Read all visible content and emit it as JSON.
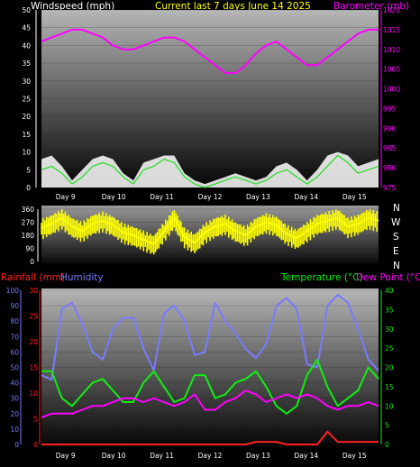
{
  "header": {
    "left_label": "Windspeed (mph)",
    "center_label": "Current last 7 days June 14 2025",
    "right_label": "Barometer (mb)"
  },
  "colors": {
    "wind": "#ffffff",
    "gust_fill": "#ffffff",
    "barometer": "#ff00ff",
    "direction": "#ffff00",
    "rainfall": "#ff2020",
    "humidity": "#7a7aff",
    "temperature": "#11ee11",
    "dewpoint": "#ff00ff",
    "header_center": "#ffff00",
    "header_left": "#ffffff",
    "header_right": "#ff00ff"
  },
  "panel3_labels": {
    "rainfall": "Rainfall (mm)",
    "humidity": "Humidity",
    "temperature": "Temperature (°C)",
    "dewpoint": "Dew Point (°C)"
  },
  "compass": [
    "N",
    "W",
    "S",
    "E",
    "N"
  ],
  "chart_data": [
    {
      "type": "line",
      "title": "Current last 7 days June 14 2025",
      "xlabel": "",
      "x_tick_labels": [
        "Day 9",
        "Day 10",
        "Day 11",
        "Day 12",
        "Day 13",
        "Day 14",
        "Day 15"
      ],
      "y_left": {
        "label": "Windspeed (mph)",
        "range": [
          0,
          50
        ],
        "ticks": [
          0,
          5,
          10,
          15,
          20,
          25,
          30,
          35,
          40,
          45,
          50
        ]
      },
      "y_right": {
        "label": "Barometer (mb)",
        "range": [
          975,
          1020
        ],
        "ticks": [
          975,
          980,
          985,
          990,
          995,
          1000,
          1005,
          1010,
          1015,
          1020
        ]
      },
      "series": [
        {
          "name": "Barometer (mb)",
          "axis": "right",
          "values": [
            1012,
            1013,
            1014,
            1015,
            1015,
            1014,
            1013,
            1011,
            1010,
            1010,
            1011,
            1012,
            1013,
            1013,
            1012,
            1010,
            1008,
            1006,
            1004,
            1004,
            1006,
            1009,
            1011,
            1012,
            1010,
            1008,
            1006,
            1006,
            1008,
            1010,
            1012,
            1014,
            1015,
            1015
          ]
        },
        {
          "name": "Windspeed (mph)",
          "axis": "left",
          "values": [
            5,
            6,
            4,
            1,
            3,
            6,
            7,
            6,
            3,
            1,
            5,
            6,
            8,
            7,
            3,
            1,
            0,
            1,
            2,
            3,
            2,
            1,
            2,
            4,
            5,
            3,
            1,
            3,
            6,
            9,
            7,
            4,
            5,
            6
          ]
        },
        {
          "name": "Gust (mph)",
          "axis": "left",
          "values": [
            8,
            9,
            6,
            2,
            5,
            8,
            9,
            8,
            4,
            2,
            7,
            8,
            9,
            9,
            4,
            2,
            1,
            2,
            3,
            4,
            3,
            2,
            3,
            6,
            7,
            5,
            2,
            5,
            9,
            10,
            9,
            6,
            7,
            8
          ]
        }
      ]
    },
    {
      "type": "scatter",
      "title": "",
      "y_range": [
        0,
        360
      ],
      "y_ticks": [
        0,
        90,
        180,
        270,
        360
      ],
      "series": [
        {
          "name": "Wind direction",
          "values": [
            230,
            260,
            300,
            240,
            210,
            260,
            280,
            250,
            200,
            180,
            150,
            120,
            210,
            300,
            170,
            130,
            200,
            240,
            260,
            210,
            180,
            240,
            270,
            250,
            190,
            160,
            210,
            260,
            280,
            300,
            240,
            260,
            300,
            280
          ]
        }
      ]
    },
    {
      "type": "line",
      "title": "",
      "x_tick_labels": [
        "Day 9",
        "Day 10",
        "Day 11",
        "Day 12",
        "Day 13",
        "Day 14",
        "Day 15"
      ],
      "y_left_outer": {
        "label": "Humidity",
        "range": [
          0,
          100
        ],
        "ticks": [
          0,
          10,
          20,
          30,
          40,
          50,
          60,
          70,
          80,
          90,
          100
        ]
      },
      "y_left_inner": {
        "label": "Rainfall (mm)",
        "range": [
          0,
          30
        ],
        "ticks": [
          0,
          5,
          10,
          15,
          20,
          25,
          30
        ]
      },
      "y_right": {
        "label": "Temperature (°C)",
        "range": [
          0,
          40
        ],
        "ticks": [
          0,
          5,
          10,
          15,
          20,
          25,
          30,
          35,
          40
        ]
      },
      "series": [
        {
          "name": "Humidity",
          "axis": "left_outer",
          "values": [
            45,
            42,
            88,
            92,
            78,
            60,
            55,
            75,
            82,
            82,
            62,
            48,
            85,
            90,
            80,
            58,
            60,
            92,
            80,
            72,
            62,
            56,
            65,
            90,
            95,
            88,
            52,
            50,
            90,
            97,
            92,
            75,
            55,
            48
          ]
        },
        {
          "name": "Temperature (°C)",
          "axis": "right",
          "values": [
            19,
            19,
            12,
            10,
            13,
            16,
            17,
            14,
            11,
            11,
            16,
            19,
            15,
            11,
            12,
            18,
            18,
            12,
            13,
            16,
            17,
            19,
            15,
            10,
            8,
            10,
            18,
            22,
            15,
            10,
            12,
            14,
            20,
            17
          ]
        },
        {
          "name": "Dew Point (°C)",
          "axis": "right",
          "values": [
            7,
            8,
            8,
            8,
            9,
            10,
            10,
            11,
            12,
            12,
            11,
            12,
            11,
            10,
            11,
            13,
            9,
            9,
            11,
            12,
            14,
            13,
            11,
            12,
            13,
            12,
            13,
            12,
            10,
            9,
            10,
            10,
            11,
            10
          ]
        },
        {
          "name": "Rainfall (mm)",
          "axis": "left_inner",
          "values": [
            0,
            0,
            0,
            0,
            0,
            0,
            0,
            0,
            0,
            0,
            0,
            0,
            0,
            0,
            0,
            0,
            0,
            0,
            0,
            0,
            0,
            0.5,
            0.5,
            0.5,
            0,
            0,
            0,
            0,
            2.5,
            0.5,
            0.5,
            0.5,
            0.5,
            0.5
          ]
        }
      ]
    }
  ]
}
